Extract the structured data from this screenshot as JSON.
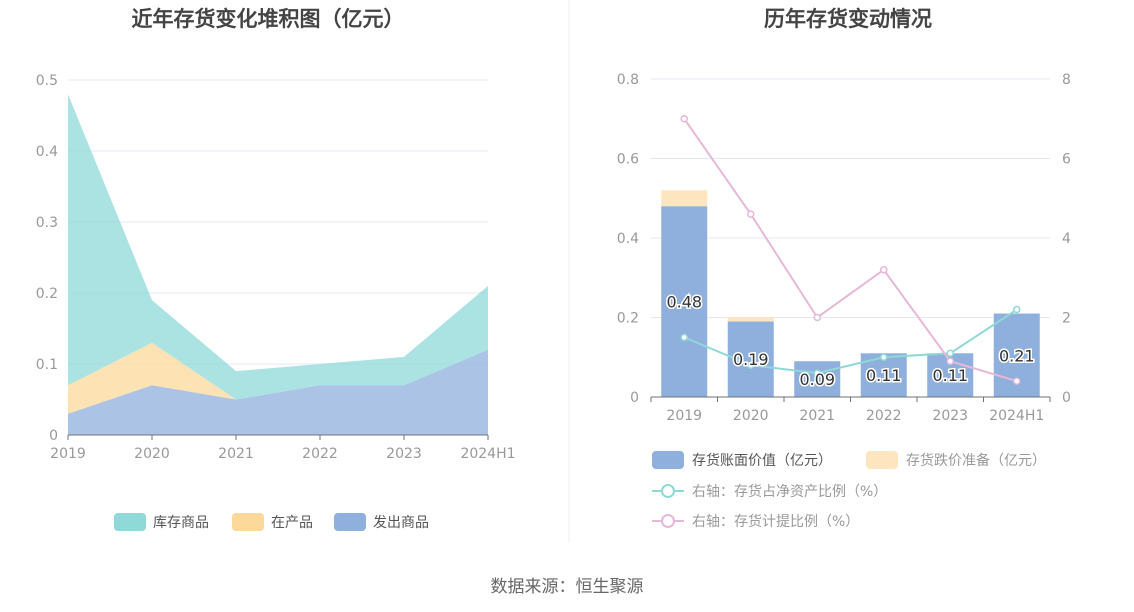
{
  "chart_data": [
    {
      "type": "area",
      "title": "近年存货变化堆积图（亿元）",
      "categories": [
        "2019",
        "2020",
        "2021",
        "2022",
        "2023",
        "2024H1"
      ],
      "stacked": true,
      "series": [
        {
          "name": "发出商品",
          "values": [
            0.03,
            0.07,
            0.05,
            0.07,
            0.07,
            0.12
          ],
          "color": "#8fb0dd"
        },
        {
          "name": "在产品",
          "values": [
            0.04,
            0.06,
            0.0,
            0.0,
            0.0,
            0.0
          ],
          "color": "#fcd99b"
        },
        {
          "name": "库存商品",
          "values": [
            0.41,
            0.06,
            0.04,
            0.03,
            0.04,
            0.09
          ],
          "color": "#8fd9d9"
        }
      ],
      "legend_order": [
        "库存商品",
        "在产品",
        "发出商品"
      ],
      "ylim": [
        0,
        0.5
      ],
      "yticks": [
        "0",
        "0.1",
        "0.2",
        "0.3",
        "0.4",
        "0.5"
      ],
      "grid": true,
      "legend_position": "bottom"
    },
    {
      "type": "bar",
      "title": "历年存货变动情况",
      "categories": [
        "2019",
        "2020",
        "2021",
        "2022",
        "2023",
        "2024H1"
      ],
      "series": [
        {
          "name": "存货账面价值（亿元）",
          "values": [
            0.48,
            0.19,
            0.09,
            0.11,
            0.11,
            0.21
          ],
          "labels": [
            "0.48",
            "0.19",
            "0.09",
            "0.11",
            "0.11",
            "0.21"
          ],
          "color": "#8fb0dd",
          "type": "bar"
        },
        {
          "name": "存货跌价准备（亿元）",
          "values": [
            0.04,
            0.01,
            0.0,
            0.0,
            0.0,
            0.0
          ],
          "color": "#fde5c0",
          "type": "bar"
        },
        {
          "name": "右轴：存货占净资产比例（%）",
          "values": [
            1.5,
            0.8,
            0.6,
            1.0,
            1.1,
            2.2
          ],
          "color": "#8ed9d6",
          "type": "line",
          "axis": "right"
        },
        {
          "name": "右轴：存货计提比例（%）",
          "values": [
            7.0,
            4.6,
            2.0,
            3.2,
            0.9,
            0.4
          ],
          "color": "#e6b8d9",
          "type": "line",
          "axis": "right"
        }
      ],
      "ylim": [
        0,
        0.8
      ],
      "yticks": [
        "0",
        "0.2",
        "0.4",
        "0.6",
        "0.8"
      ],
      "y2lim": [
        0,
        8
      ],
      "y2ticks": [
        "0",
        "2",
        "4",
        "6",
        "8"
      ],
      "grid": true,
      "legend_position": "bottom"
    }
  ],
  "source": "数据来源：恒生聚源"
}
